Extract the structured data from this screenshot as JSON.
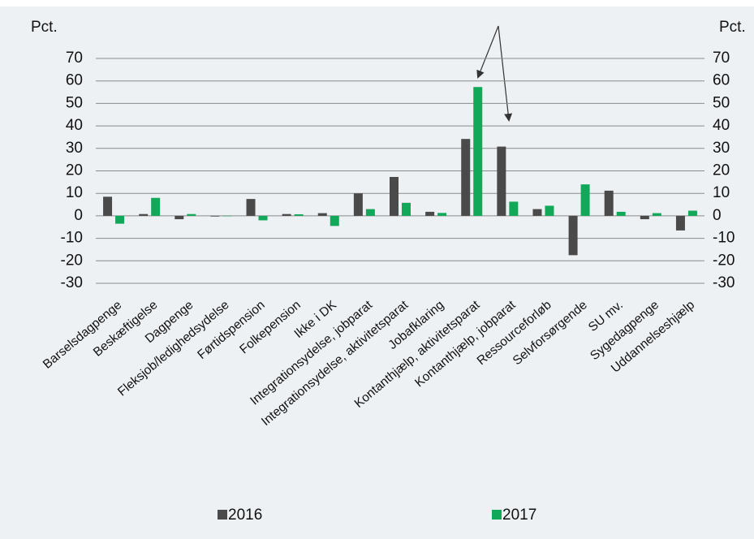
{
  "chart_data": {
    "type": "bar",
    "y_label": "Pct.",
    "y2_label": "Pct.",
    "categories": [
      "Barselsdagpenge",
      "Beskæftigelse",
      "Dagpenge",
      "Fleksjob/ledighedsydelse",
      "Førtidspension",
      "Folkepension",
      "Ikke i DK",
      "Integrationsydelse, jobparat",
      "Integrationsydelse, aktivitetsparat",
      "Jobafklaring",
      "Kontanthjælp, aktivitetsparat",
      "Kontanthjælp, jobparat",
      "Ressourceforløb",
      "Selvforsørgende",
      "SU mv.",
      "Sygedagpenge",
      "Uddannelseshjælp"
    ],
    "series": [
      {
        "name": "2016",
        "color": "#4a4a4a",
        "values": [
          8.5,
          0.8,
          -1.5,
          -0.3,
          7.5,
          0.8,
          1.2,
          10,
          17.3,
          1.8,
          34.2,
          30.8,
          3,
          -17.5,
          11.2,
          -1.5,
          -6.5
        ]
      },
      {
        "name": "2017",
        "color": "#12a85a",
        "values": [
          -3.5,
          8,
          0.8,
          0,
          -2,
          0.7,
          -4.5,
          3,
          5.8,
          1.3,
          57.3,
          6.3,
          4.5,
          14,
          1.8,
          1.2,
          2.3
        ]
      }
    ],
    "ylim": [
      -30,
      70
    ],
    "yticks": [
      -30,
      -20,
      -10,
      0,
      10,
      20,
      30,
      40,
      50,
      60,
      70
    ],
    "grid": true
  }
}
